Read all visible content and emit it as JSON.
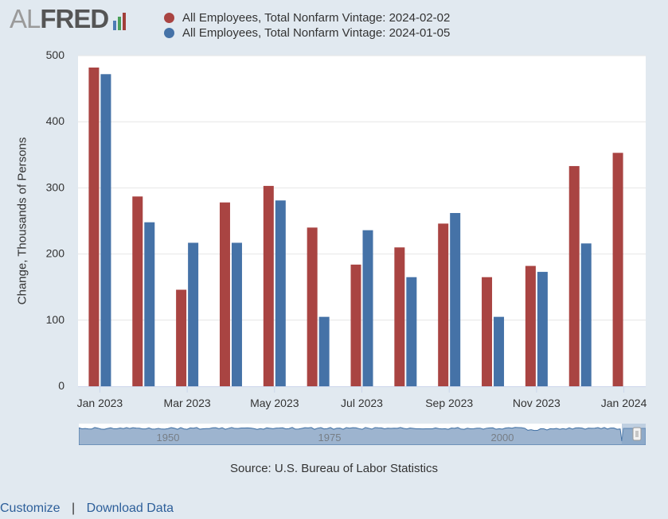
{
  "logo": {
    "prefix": "AL",
    "brand": "FRED",
    "bar_colors": [
      "#4d7cb5",
      "#4aa05a",
      "#a23f3a"
    ],
    "icon": "fred-bars-icon"
  },
  "legend": [
    {
      "label": "All Employees, Total Nonfarm Vintage: 2024-02-02",
      "color": "#a94442"
    },
    {
      "label": "All Employees, Total Nonfarm Vintage: 2024-01-05",
      "color": "#4572a7"
    }
  ],
  "chart_data": {
    "type": "bar",
    "ylabel": "Change, Thousands of Persons",
    "ylim": [
      0,
      500
    ],
    "yticks": [
      0,
      100,
      200,
      300,
      400,
      500
    ],
    "grid": true,
    "categories": [
      "Jan 2023",
      "Feb 2023",
      "Mar 2023",
      "Apr 2023",
      "May 2023",
      "Jun 2023",
      "Jul 2023",
      "Aug 2023",
      "Sep 2023",
      "Oct 2023",
      "Nov 2023",
      "Dec 2023",
      "Jan 2024"
    ],
    "xtick_labels": [
      "Jan 2023",
      "Mar 2023",
      "May 2023",
      "Jul 2023",
      "Sep 2023",
      "Nov 2023",
      "Jan 2024"
    ],
    "series": [
      {
        "name": "All Employees, Total Nonfarm Vintage: 2024-02-02",
        "color": "#a94442",
        "values": [
          482,
          287,
          146,
          278,
          303,
          240,
          184,
          210,
          246,
          165,
          182,
          333,
          353
        ]
      },
      {
        "name": "All Employees, Total Nonfarm Vintage: 2024-01-05",
        "color": "#4572a7",
        "values": [
          472,
          248,
          217,
          217,
          281,
          105,
          236,
          165,
          262,
          105,
          173,
          216,
          null
        ]
      }
    ]
  },
  "navigator": {
    "labels": [
      "1950",
      "1975",
      "2000"
    ]
  },
  "source": "Source: U.S. Bureau of Labor Statistics",
  "links": {
    "customize": "Customize",
    "separator": "|",
    "download": "Download Data"
  }
}
